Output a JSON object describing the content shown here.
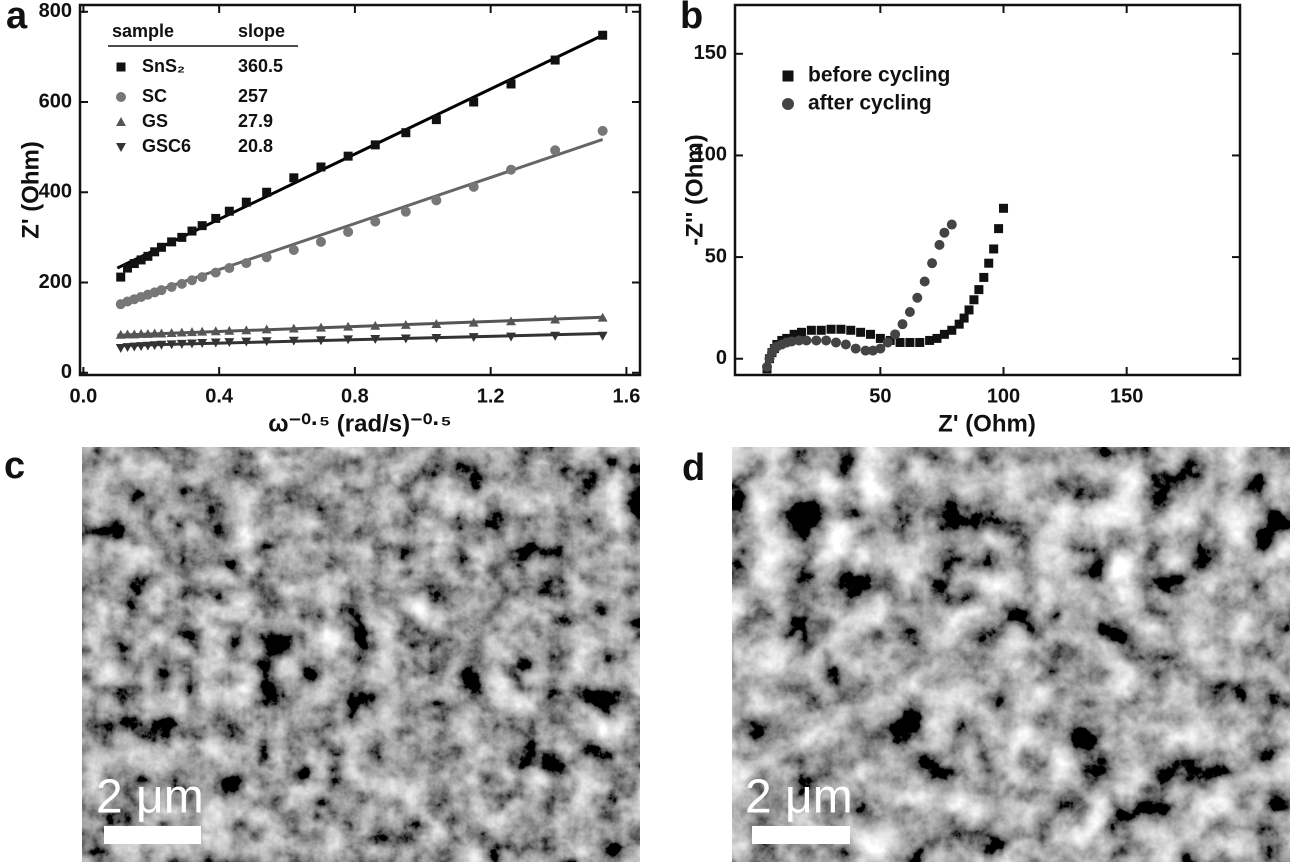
{
  "chart_data": [
    {
      "type": "scatter",
      "label": "a",
      "x_label": "ω⁻⁰·⁵ (rad/s)⁻⁰·⁵",
      "y_label": "Z' (Ohm)",
      "xlim": [
        -0.01,
        1.64
      ],
      "ylim": [
        -5,
        815
      ],
      "xticks": [
        {
          "value": 0,
          "label": "0.0"
        },
        0.4,
        0.8,
        1.2,
        1.6
      ],
      "yticks": [
        0,
        200,
        400,
        600,
        800
      ],
      "legend_headers": [
        "sample",
        "slope"
      ],
      "x": [
        0.11,
        0.13,
        0.15,
        0.17,
        0.19,
        0.21,
        0.23,
        0.26,
        0.29,
        0.32,
        0.35,
        0.39,
        0.43,
        0.48,
        0.54,
        0.62,
        0.7,
        0.78,
        0.86,
        0.95,
        1.04,
        1.15,
        1.26,
        1.39,
        1.53
      ],
      "fit_x": [
        0.1,
        1.53
      ],
      "series": [
        {
          "name": "SnS₂",
          "slope": 360.5,
          "marker": "square",
          "color": "#111111",
          "values": [
            212,
            232,
            242,
            250,
            258,
            268,
            278,
            290,
            300,
            314,
            326,
            342,
            358,
            378,
            400,
            432,
            456,
            480,
            505,
            532,
            561,
            600,
            640,
            693,
            748
          ],
          "fit": [
            232,
            748
          ],
          "fit_color": "#000000"
        },
        {
          "name": "SC",
          "slope": 257.0,
          "marker": "circle",
          "color": "#777777",
          "values": [
            152,
            158,
            163,
            168,
            173,
            178,
            183,
            190,
            197,
            205,
            212,
            222,
            232,
            243,
            256,
            272,
            290,
            312,
            335,
            357,
            382,
            412,
            450,
            493,
            536
          ],
          "fit": [
            152,
            517
          ],
          "fit_color": "#666666"
        },
        {
          "name": "GS",
          "slope": 27.9,
          "marker": "triangle-up",
          "color": "#555555",
          "values": [
            84,
            85,
            85,
            86,
            86,
            87,
            87,
            88,
            89,
            90,
            91,
            92,
            93,
            94,
            96,
            98,
            100,
            102,
            104,
            106,
            108,
            111,
            114,
            118,
            122
          ],
          "fit": [
            83,
            123
          ],
          "fit_color": "#555555"
        },
        {
          "name": "GSC6",
          "slope": 20.8,
          "marker": "triangle-down",
          "color": "#333333",
          "values": [
            55,
            57,
            58,
            59,
            60,
            61,
            62,
            63,
            64,
            65,
            66,
            67,
            68,
            69,
            70,
            71,
            72,
            74,
            75,
            76,
            77,
            79,
            80,
            82,
            82
          ],
          "fit": [
            60,
            87
          ],
          "fit_color": "#333333"
        }
      ]
    },
    {
      "type": "scatter",
      "label": "b",
      "x_label": "Z' (Ohm)",
      "y_label": "-Z'' (Ohm)",
      "xlim": [
        -9,
        196
      ],
      "ylim": [
        -8,
        174
      ],
      "xticks": [
        50,
        100,
        150
      ],
      "yticks": [
        0,
        50,
        100,
        150
      ],
      "series": [
        {
          "name": "before cycling",
          "marker": "square",
          "color": "#111111",
          "x": [
            4,
            5,
            6,
            7,
            8,
            10,
            12,
            15,
            18,
            22,
            26,
            30,
            34,
            38,
            42,
            46,
            50,
            54,
            58,
            62,
            66,
            70,
            73,
            76,
            79,
            82,
            84,
            86,
            88,
            90,
            92,
            94,
            96,
            98,
            100
          ],
          "values": [
            -5,
            0,
            3,
            5,
            7,
            9,
            10,
            12,
            13,
            14,
            14,
            14.5,
            14.5,
            14,
            13,
            12,
            10,
            9,
            8,
            8,
            8,
            9,
            10,
            12,
            14,
            17,
            20,
            24,
            29,
            34,
            40,
            47,
            54,
            64,
            74
          ]
        },
        {
          "name": "after cycling",
          "marker": "circle",
          "color": "#444444",
          "x": [
            4,
            5,
            6,
            7,
            8,
            10,
            12,
            14,
            17,
            20,
            24,
            28,
            32,
            36,
            40,
            44,
            47,
            50,
            53,
            56,
            59,
            62,
            65,
            68,
            71,
            74,
            76,
            79
          ],
          "values": [
            -4,
            0,
            3,
            5,
            6,
            7,
            8,
            8.5,
            9,
            9,
            9,
            9,
            8,
            7,
            5,
            4,
            4,
            5,
            8,
            12,
            17,
            23,
            30,
            38,
            47,
            56,
            62,
            66
          ]
        }
      ]
    }
  ],
  "images": [
    {
      "label": "c",
      "scale_bar": "2 μm"
    },
    {
      "label": "d",
      "scale_bar": "2 μm"
    }
  ]
}
